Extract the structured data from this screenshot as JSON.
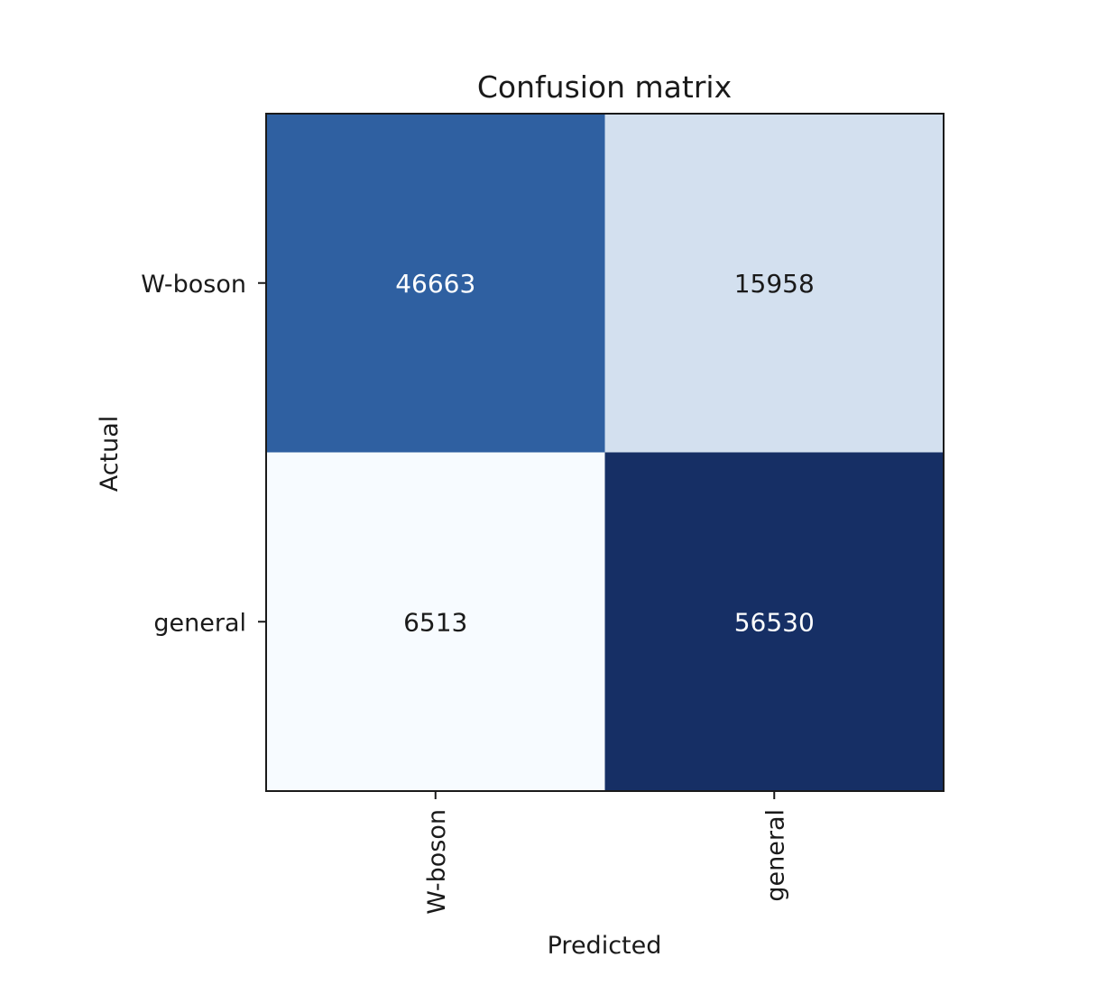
{
  "chart_data": {
    "type": "heatmap",
    "title": "Confusion matrix",
    "xlabel": "Predicted",
    "ylabel": "Actual",
    "x_categories": [
      "W-boson",
      "general"
    ],
    "y_categories": [
      "W-boson",
      "general"
    ],
    "matrix": [
      [
        46663,
        15958
      ],
      [
        6513,
        56530
      ]
    ],
    "colormap": "Blues",
    "colorbar": false,
    "cell_colors": [
      [
        "#2f60a1",
        "#d3e0ef"
      ],
      [
        "#f7fbff",
        "#162f65"
      ]
    ],
    "text_colors": [
      [
        "#ffffff",
        "#1a1a1a"
      ],
      [
        "#1a1a1a",
        "#ffffff"
      ]
    ]
  }
}
